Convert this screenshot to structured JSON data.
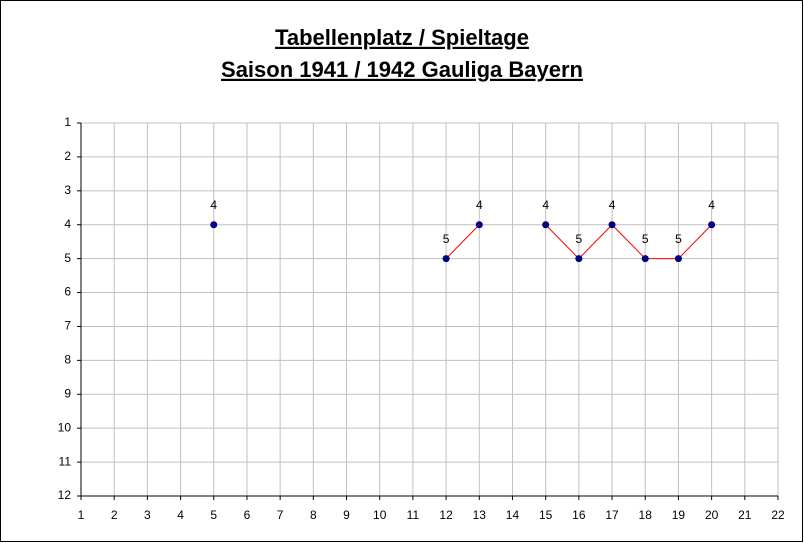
{
  "chart_data": {
    "type": "line",
    "title": "Tabellenplatz / Spieltage",
    "subtitle": "Saison 1941 / 1942 Gauliga Bayern",
    "x": [
      1,
      2,
      3,
      4,
      5,
      6,
      7,
      8,
      9,
      10,
      11,
      12,
      13,
      14,
      15,
      16,
      17,
      18,
      19,
      20,
      21,
      22
    ],
    "series": [
      {
        "color": "#ff0000",
        "marker_color": "#000080",
        "values": [
          null,
          null,
          null,
          null,
          4,
          null,
          null,
          null,
          null,
          null,
          null,
          5,
          4,
          null,
          4,
          5,
          4,
          5,
          5,
          4,
          null,
          null
        ]
      }
    ],
    "xlim": [
      1,
      22
    ],
    "xticks": [
      1,
      2,
      3,
      4,
      5,
      6,
      7,
      8,
      9,
      10,
      11,
      12,
      13,
      14,
      15,
      16,
      17,
      18,
      19,
      20,
      21,
      22
    ],
    "ylim": [
      1,
      12
    ],
    "yticks": [
      1,
      2,
      3,
      4,
      5,
      6,
      7,
      8,
      9,
      10,
      11,
      12
    ],
    "y_inverted": true,
    "grid": true,
    "data_labels": true
  }
}
